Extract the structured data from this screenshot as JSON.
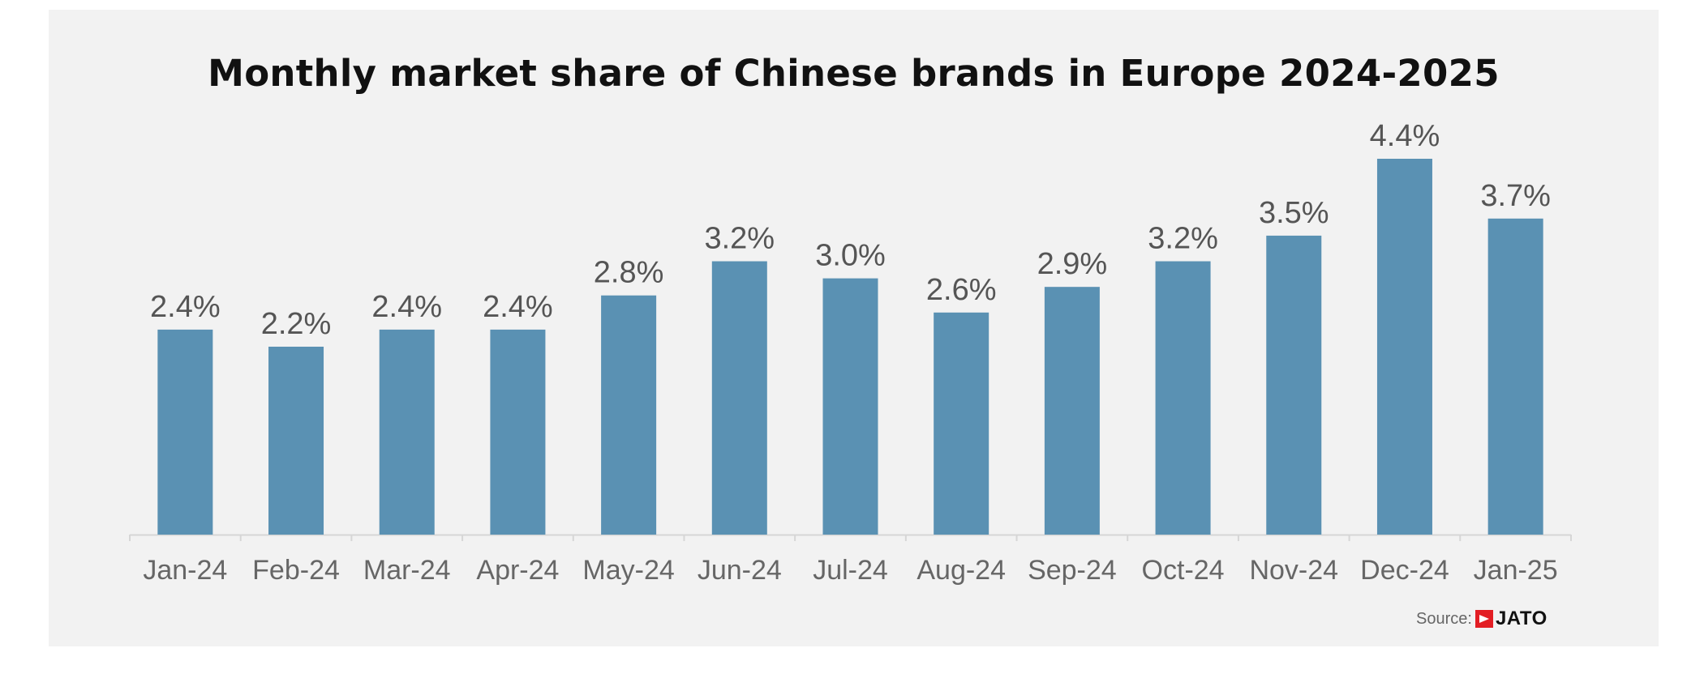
{
  "chart_data": {
    "type": "bar",
    "title": "Monthly market share of Chinese brands in Europe 2024-2025",
    "categories": [
      "Jan-24",
      "Feb-24",
      "Mar-24",
      "Apr-24",
      "May-24",
      "Jun-24",
      "Jul-24",
      "Aug-24",
      "Sep-24",
      "Oct-24",
      "Nov-24",
      "Dec-24",
      "Jan-25"
    ],
    "values": [
      2.4,
      2.2,
      2.4,
      2.4,
      2.8,
      3.2,
      3.0,
      2.6,
      2.9,
      3.2,
      3.5,
      4.4,
      3.7
    ],
    "value_labels": [
      "2.4%",
      "2.2%",
      "2.4%",
      "2.4%",
      "2.8%",
      "3.2%",
      "3.0%",
      "2.6%",
      "2.9%",
      "3.2%",
      "3.5%",
      "4.4%",
      "3.7%"
    ],
    "xlabel": "",
    "ylabel": "",
    "ylim": [
      0,
      4.4
    ],
    "grid": false,
    "legend": "none",
    "bar_color": "#5a91b3",
    "background_color": "#f2f2f2"
  },
  "source": {
    "label": "Source:",
    "brand": "JATO",
    "brand_color": "#e31e24"
  }
}
